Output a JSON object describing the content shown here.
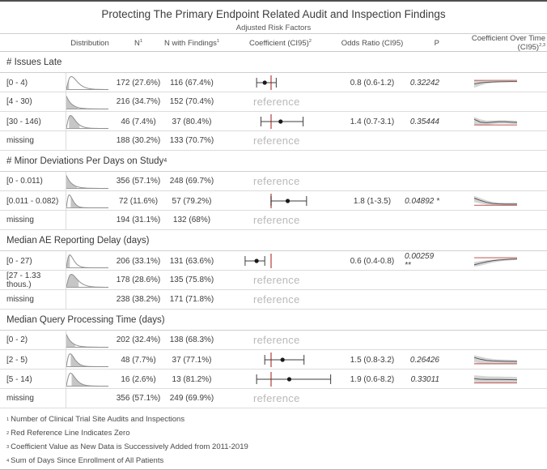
{
  "title": "Protecting The Primary Endpoint Related Audit and Inspection Findings",
  "subtitle": "Adjusted Risk Factors",
  "columns": [
    {
      "text": "Distribution",
      "sup": ""
    },
    {
      "text": "N",
      "sup": "1"
    },
    {
      "text": "N with Findings",
      "sup": "1"
    },
    {
      "text": "Coefficient (CI95)",
      "sup": "2"
    },
    {
      "text": "Odds Ratio (CI95)",
      "sup": ""
    },
    {
      "text": "P",
      "sup": ""
    },
    {
      "text": "Coefficient Over Time (CI95)",
      "sup": "2,3"
    }
  ],
  "labels": {
    "reference": "reference"
  },
  "colors": {
    "zero_line_red": "#c5625d",
    "trend_red": "#c26b65",
    "band_gray": "#cfcfcf",
    "trend_line": "#555555",
    "dot_black": "#1a1a1a",
    "whisker": "#3d3d3d",
    "dist_stroke": "#8f8f8f",
    "dist_fill": "#c6c6c6",
    "dist_baseline": "#9a9a9a"
  },
  "chart_data": {
    "type": "forest_plot_table",
    "coefficient_axis": {
      "zero_label": "0",
      "note": "red reference line indicates zero, x = log(odds ratio)"
    },
    "sections": [
      {
        "title": "# Issues Late",
        "sup": "",
        "rows": [
          {
            "label": "[0 - 4)",
            "n": "172 (27.6%)",
            "n_findings": "116 (67.4%)",
            "reference": false,
            "or": 0.8,
            "ci_lo": 0.6,
            "ci_hi": 1.2,
            "or_text": "0.8 (0.6-1.2)",
            "p_text": "0.32242",
            "dist": {
              "type": "peak",
              "peak": 0.12,
              "fill": [
                0,
                0.08
              ]
            },
            "trend": {
              "zero": 0.3,
              "line": [
                0.62,
                0.52,
                0.46,
                0.44,
                0.42,
                0.41,
                0.4,
                0.4
              ],
              "upper": [
                0.25,
                0.32,
                0.35,
                0.36,
                0.36,
                0.36,
                0.36,
                0.36
              ],
              "lower": [
                0.95,
                0.75,
                0.6,
                0.52,
                0.47,
                0.45,
                0.44,
                0.44
              ]
            }
          },
          {
            "label": "[4 - 30)",
            "n": "216 (34.7%)",
            "n_findings": "152 (70.4%)",
            "reference": true,
            "dist": {
              "type": "decay",
              "fill": [
                0,
                0.28
              ]
            }
          },
          {
            "label": "[30 - 146)",
            "n": "46 (7.4%)",
            "n_findings": "37 (80.4%)",
            "reference": false,
            "or": 1.4,
            "ci_lo": 0.7,
            "ci_hi": 3.1,
            "or_text": "1.4 (0.7-3.1)",
            "p_text": "0.35444",
            "dist": {
              "type": "peak",
              "peak": 0.1,
              "fill": [
                0.06,
                0.33
              ]
            },
            "trend": {
              "zero": 0.8,
              "line": [
                0.3,
                0.55,
                0.6,
                0.55,
                0.52,
                0.52,
                0.55,
                0.58
              ],
              "upper": [
                0.1,
                0.3,
                0.42,
                0.4,
                0.38,
                0.38,
                0.4,
                0.44
              ],
              "lower": [
                0.75,
                0.85,
                0.8,
                0.72,
                0.68,
                0.68,
                0.7,
                0.72
              ]
            }
          },
          {
            "label": "missing",
            "n": "188 (30.2%)",
            "n_findings": "133 (70.7%)",
            "reference": true,
            "dist": null
          }
        ]
      },
      {
        "title": "# Minor Deviations Per Days on Study",
        "sup": "4",
        "rows": [
          {
            "label": "[0 - 0.011)",
            "n": "356 (57.1%)",
            "n_findings": "248 (69.7%)",
            "reference": true,
            "dist": {
              "type": "decay",
              "fill": [
                0,
                0.25
              ]
            }
          },
          {
            "label": "[0.011 - 0.082)",
            "n": "72 (11.6%)",
            "n_findings": "57 (79.2%)",
            "reference": false,
            "or": 1.8,
            "ci_lo": 1.0,
            "ci_hi": 3.5,
            "or_text": "1.8 (1-3.5)",
            "p_text": "0.04892 *",
            "dist": {
              "type": "peak",
              "peak": 0.07,
              "fill": [
                0.1,
                0.38
              ]
            },
            "trend": {
              "zero": 0.88,
              "line": [
                0.25,
                0.45,
                0.62,
                0.72,
                0.76,
                0.78,
                0.78,
                0.78
              ],
              "upper": [
                0.05,
                0.25,
                0.45,
                0.58,
                0.64,
                0.66,
                0.66,
                0.66
              ],
              "lower": [
                0.6,
                0.72,
                0.82,
                0.88,
                0.9,
                0.9,
                0.9,
                0.9
              ]
            }
          },
          {
            "label": "missing",
            "n": "194 (31.1%)",
            "n_findings": "132 (68%)",
            "reference": true,
            "dist": null
          }
        ]
      },
      {
        "title": "Median AE Reporting Delay (days)",
        "sup": "",
        "rows": [
          {
            "label": "[0 - 27)",
            "n": "206 (33.1%)",
            "n_findings": "131 (63.6%)",
            "reference": false,
            "or": 0.6,
            "ci_lo": 0.4,
            "ci_hi": 0.8,
            "or_text": "0.6 (0.4-0.8)",
            "p_text": "0.00259 **",
            "dist": {
              "type": "peak",
              "peak": 0.08,
              "fill": [
                0,
                0.1
              ]
            },
            "trend": {
              "zero": 0.22,
              "line": [
                0.85,
                0.7,
                0.58,
                0.48,
                0.42,
                0.38,
                0.35,
                0.33
              ],
              "upper": [
                0.6,
                0.52,
                0.44,
                0.38,
                0.34,
                0.31,
                0.29,
                0.28
              ],
              "lower": [
                1.0,
                0.92,
                0.78,
                0.64,
                0.55,
                0.48,
                0.44,
                0.4
              ]
            }
          },
          {
            "label": "[27 - 1.33 thous.)",
            "n": "178 (28.6%)",
            "n_findings": "135 (75.8%)",
            "reference": true,
            "dist": {
              "type": "peak",
              "peak": 0.12,
              "fill": [
                0.02,
                0.3
              ]
            }
          },
          {
            "label": "missing",
            "n": "238 (38.2%)",
            "n_findings": "171 (71.8%)",
            "reference": true,
            "dist": null
          }
        ]
      },
      {
        "title": "Median Query Processing Time (days)",
        "sup": "",
        "rows": [
          {
            "label": "[0 - 2)",
            "n": "202 (32.4%)",
            "n_findings": "138 (68.3%)",
            "reference": true,
            "dist": {
              "type": "decay",
              "fill": [
                0,
                0.22
              ]
            }
          },
          {
            "label": "[2 - 5)",
            "n": "48 (7.7%)",
            "n_findings": "37 (77.1%)",
            "reference": false,
            "or": 1.5,
            "ci_lo": 0.8,
            "ci_hi": 3.2,
            "or_text": "1.5 (0.8-3.2)",
            "p_text": "0.26426",
            "dist": {
              "type": "peak",
              "peak": 0.09,
              "fill": [
                0.1,
                0.4
              ]
            },
            "trend": {
              "zero": 0.85,
              "line": [
                0.3,
                0.45,
                0.55,
                0.6,
                0.62,
                0.63,
                0.64,
                0.65
              ],
              "upper": [
                0.1,
                0.22,
                0.35,
                0.42,
                0.46,
                0.48,
                0.5,
                0.52
              ],
              "lower": [
                0.72,
                0.8,
                0.82,
                0.82,
                0.82,
                0.82,
                0.82,
                0.82
              ]
            }
          },
          {
            "label": "[5 - 14)",
            "n": "16 (2.6%)",
            "n_findings": "13 (81.2%)",
            "reference": false,
            "or": 1.9,
            "ci_lo": 0.6,
            "ci_hi": 8.2,
            "or_text": "1.9 (0.6-8.2)",
            "p_text": "0.33011",
            "dist": {
              "type": "peak",
              "peak": 0.1,
              "fill": [
                0.12,
                0.45
              ]
            },
            "trend": {
              "zero": 0.82,
              "line": [
                0.45,
                0.5,
                0.52,
                0.52,
                0.52,
                0.53,
                0.54,
                0.55
              ],
              "upper": [
                0.15,
                0.2,
                0.24,
                0.26,
                0.26,
                0.28,
                0.28,
                0.3
              ],
              "lower": [
                0.75,
                0.78,
                0.78,
                0.78,
                0.78,
                0.78,
                0.78,
                0.78
              ]
            }
          },
          {
            "label": "missing",
            "n": "356 (57.1%)",
            "n_findings": "249 (69.9%)",
            "reference": true,
            "dist": null
          }
        ]
      }
    ]
  },
  "footnotes": [
    {
      "sup": "1",
      "text": "Number of Clinical Trial Site Audits and Inspections"
    },
    {
      "sup": "2",
      "text": "Red Reference Line Indicates Zero"
    },
    {
      "sup": "3",
      "text": "Coefficient Value as New Data is Successively Added from 2011-2019"
    },
    {
      "sup": "4",
      "text": "Sum of Days Since Enrollment of All Patients"
    }
  ]
}
